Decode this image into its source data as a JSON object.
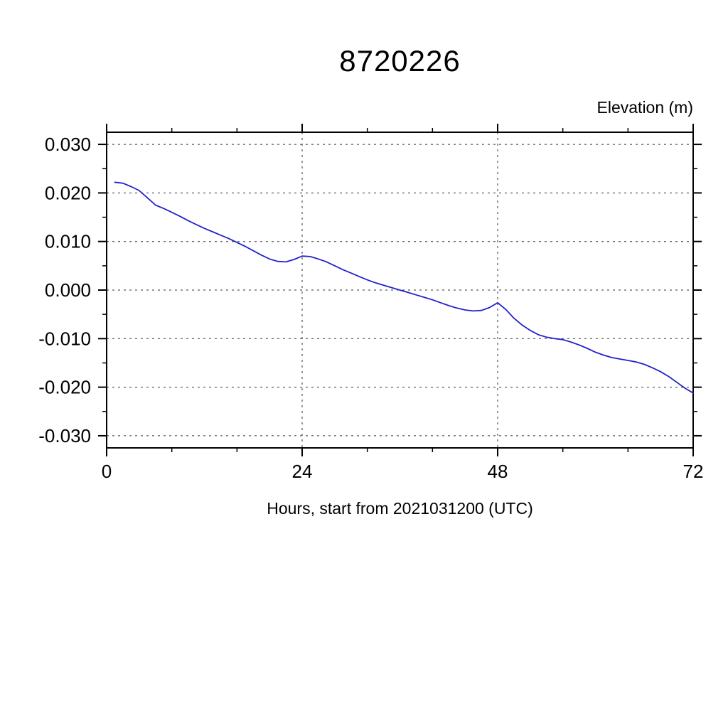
{
  "page": {
    "background": "#ffffff"
  },
  "chart_data": {
    "type": "line",
    "title": "8720226",
    "ylabel": "Elevation (m)",
    "xlabel": "Hours, start from 2021031200 (UTC)",
    "xlim": [
      0,
      72
    ],
    "ylim": [
      -0.0325,
      0.0325
    ],
    "xticks": {
      "values": [
        0,
        24,
        48,
        72
      ],
      "labels": [
        "0",
        "24",
        "48",
        "72"
      ]
    },
    "xminor": [
      8,
      16,
      32,
      40,
      56,
      64
    ],
    "yticks": {
      "values": [
        0.03,
        0.02,
        0.01,
        0.0,
        -0.01,
        -0.02,
        -0.03
      ],
      "labels": [
        "0.030",
        "0.020",
        "0.010",
        "0.000",
        "-0.010",
        "-0.020",
        "-0.030"
      ]
    },
    "yminor": [
      0.025,
      0.015,
      0.005,
      -0.005,
      -0.015,
      -0.025
    ],
    "grid": {
      "on": true,
      "style": "dashed",
      "x_values": [
        24,
        48
      ],
      "y_values": [
        0.03,
        0.02,
        0.01,
        0.0,
        -0.01,
        -0.02,
        -0.03
      ]
    },
    "legend": null,
    "series": [
      {
        "name": "elevation",
        "color": "#2222cc",
        "x": [
          1,
          2,
          3,
          4,
          5,
          6,
          7,
          8,
          9,
          10,
          11,
          12,
          13,
          14,
          15,
          16,
          17,
          18,
          19,
          20,
          21,
          22,
          23,
          24,
          25,
          26,
          27,
          28,
          29,
          30,
          31,
          32,
          33,
          34,
          35,
          36,
          37,
          38,
          39,
          40,
          41,
          42,
          43,
          44,
          45,
          46,
          47,
          48,
          49,
          50,
          51,
          52,
          53,
          54,
          55,
          56,
          57,
          58,
          59,
          60,
          61,
          62,
          63,
          64,
          65,
          66,
          67,
          68,
          69,
          70,
          71,
          72
        ],
        "y": [
          0.0222,
          0.022,
          0.0213,
          0.0205,
          0.019,
          0.0175,
          0.0168,
          0.016,
          0.0152,
          0.0143,
          0.0135,
          0.0127,
          0.012,
          0.0113,
          0.0106,
          0.0098,
          0.009,
          0.0081,
          0.0072,
          0.0064,
          0.0059,
          0.0058,
          0.0063,
          0.007,
          0.0069,
          0.0064,
          0.0058,
          0.005,
          0.0042,
          0.0035,
          0.0028,
          0.0021,
          0.0015,
          0.001,
          0.0005,
          0.0,
          -0.0005,
          -0.001,
          -0.0015,
          -0.002,
          -0.0026,
          -0.0032,
          -0.0037,
          -0.0041,
          -0.0043,
          -0.0042,
          -0.0036,
          -0.0026,
          -0.004,
          -0.0058,
          -0.0072,
          -0.0083,
          -0.0092,
          -0.0097,
          -0.01,
          -0.0102,
          -0.0107,
          -0.0113,
          -0.012,
          -0.0128,
          -0.0134,
          -0.0139,
          -0.0142,
          -0.0145,
          -0.0148,
          -0.0153,
          -0.016,
          -0.0168,
          -0.0178,
          -0.019,
          -0.0202,
          -0.0212
        ]
      }
    ]
  }
}
